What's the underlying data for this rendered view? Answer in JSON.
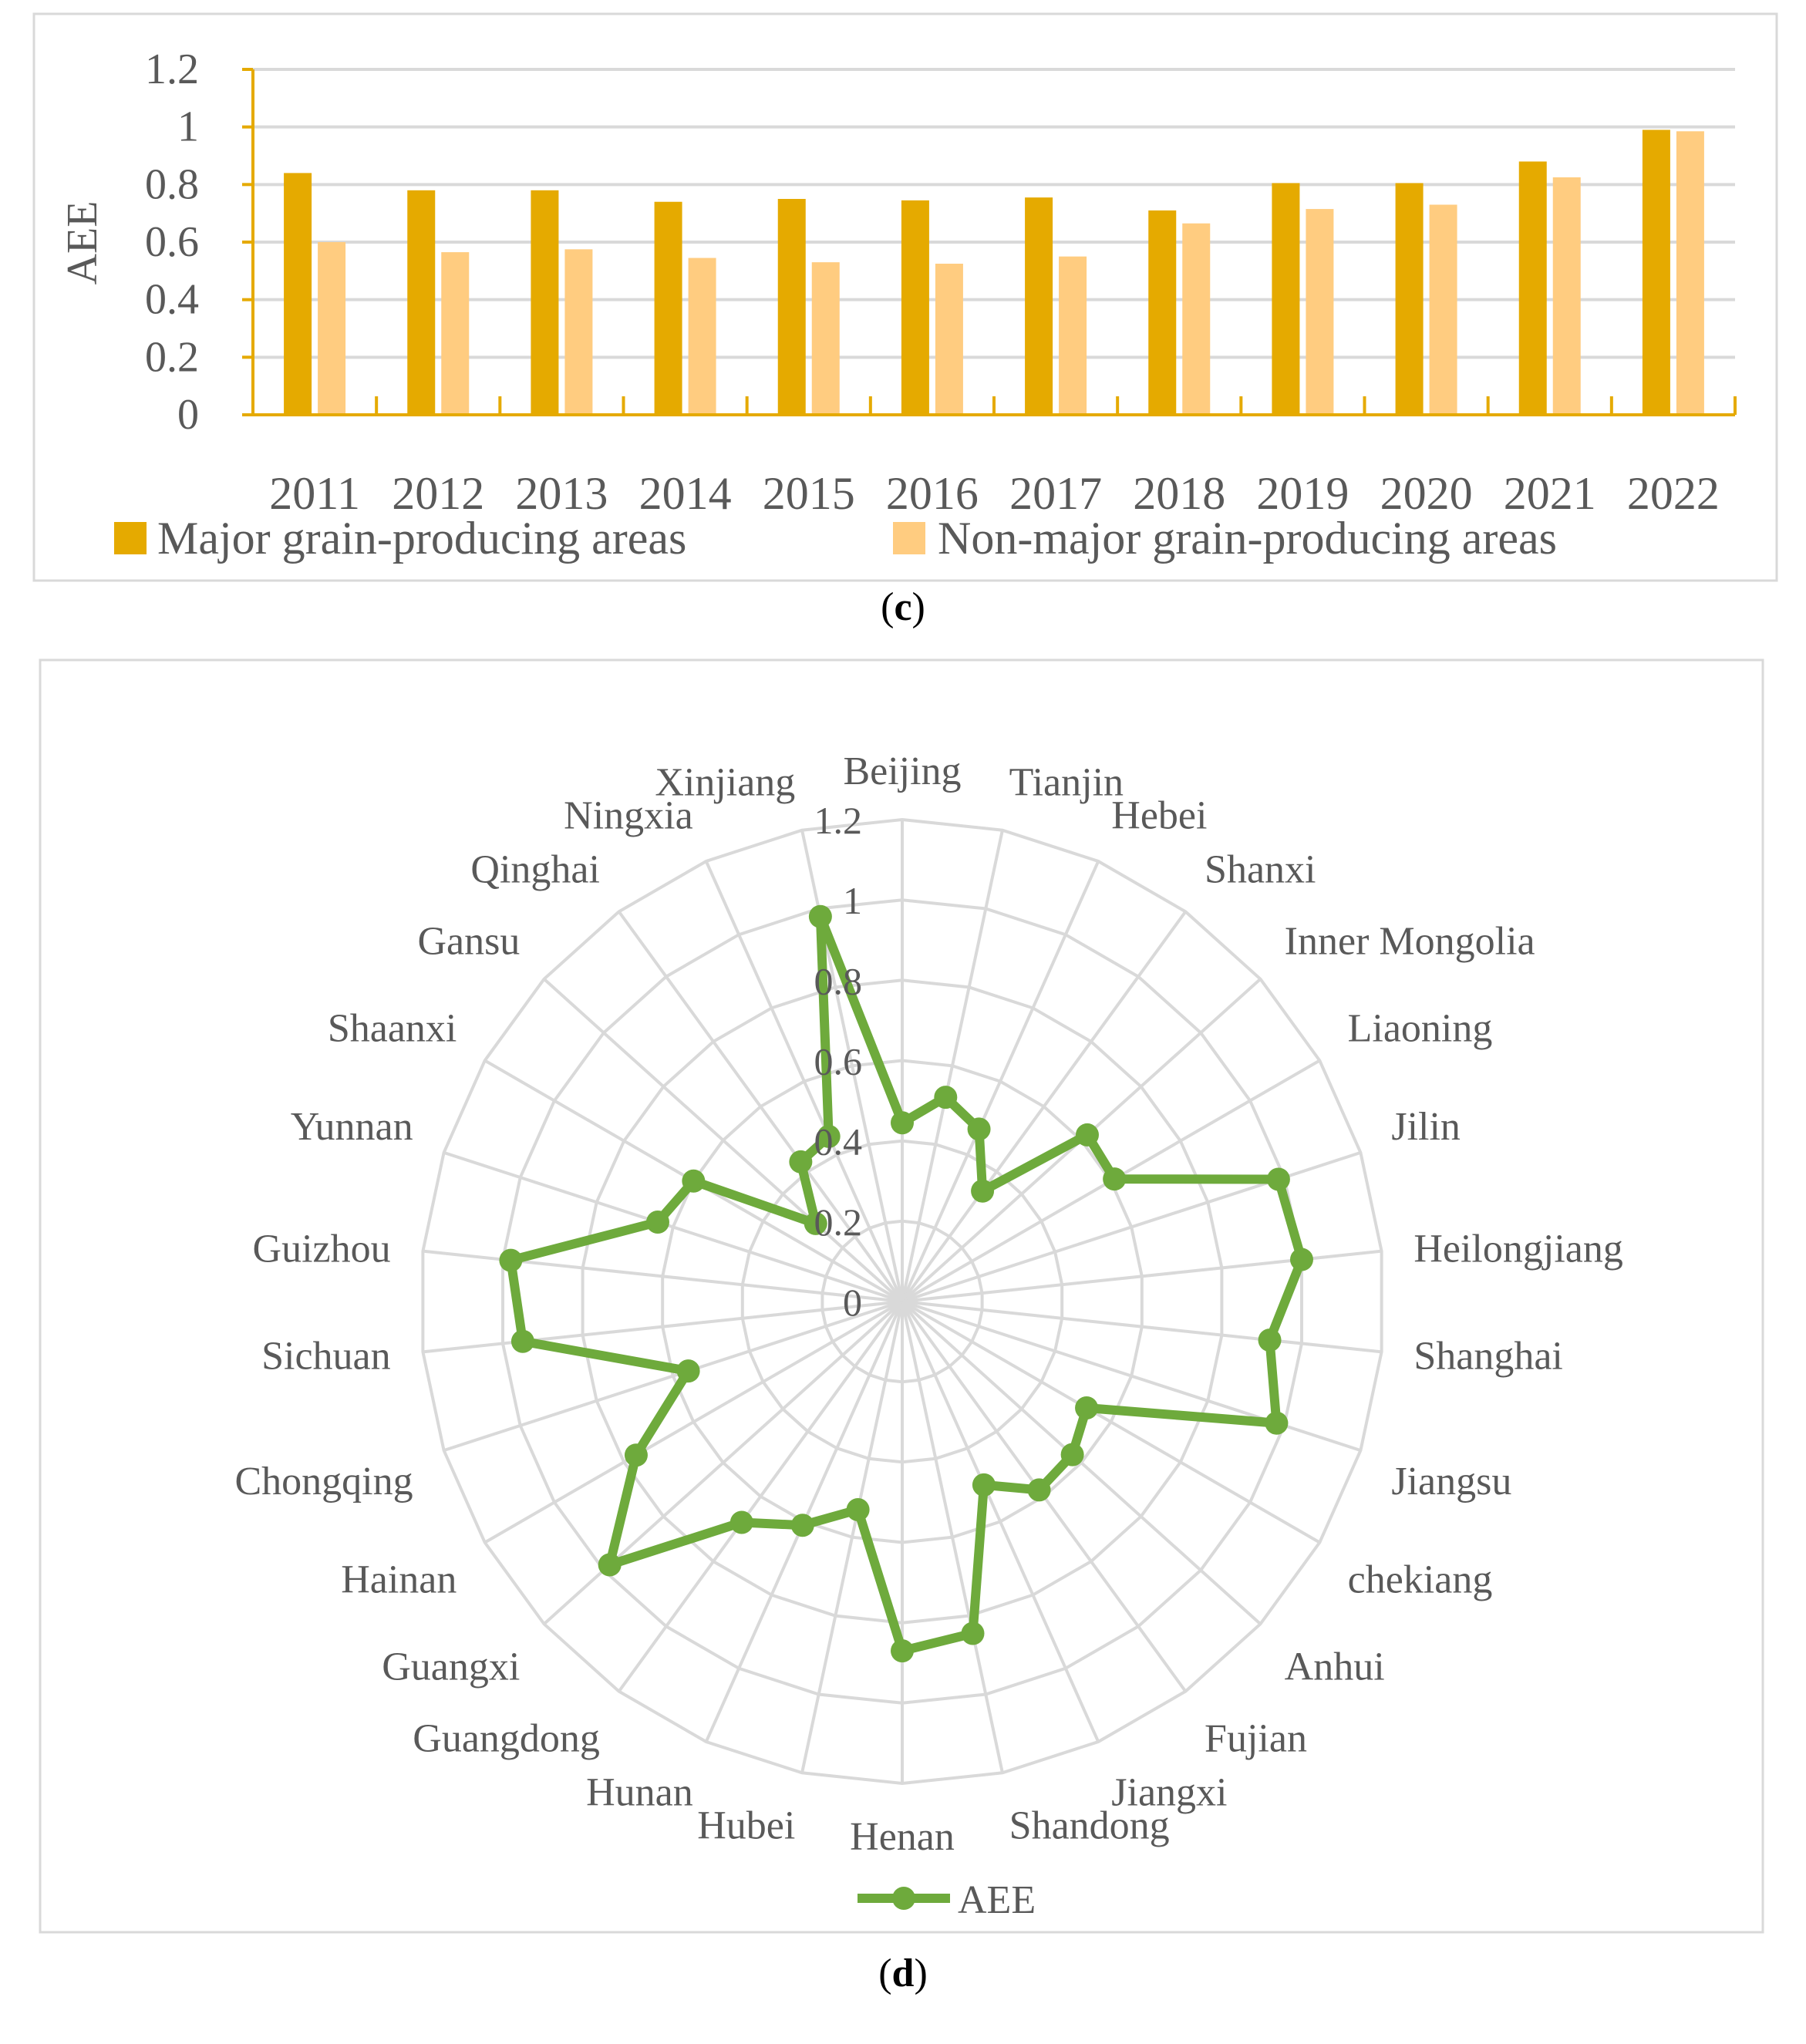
{
  "chart_data": [
    {
      "type": "bar",
      "panel": "c",
      "ylabel": "AEE",
      "xlabel": "",
      "ylim": [
        0,
        1.2
      ],
      "yticks": [
        "0",
        "0.2",
        "0.4",
        "0.6",
        "0.8",
        "1",
        "1.2"
      ],
      "categories": [
        "2011",
        "2012",
        "2013",
        "2014",
        "2015",
        "2016",
        "2017",
        "2018",
        "2019",
        "2020",
        "2021",
        "2022"
      ],
      "series": [
        {
          "name": "Major grain-producing areas",
          "color": "#E5AA00",
          "values": [
            0.84,
            0.78,
            0.78,
            0.74,
            0.75,
            0.745,
            0.755,
            0.71,
            0.805,
            0.805,
            0.88,
            0.99
          ]
        },
        {
          "name": "Non-major grain-producing areas",
          "color": "#FFCC80",
          "values": [
            0.6,
            0.565,
            0.575,
            0.545,
            0.53,
            0.525,
            0.55,
            0.665,
            0.715,
            0.73,
            0.825,
            0.985
          ]
        }
      ],
      "grid": true,
      "legend": "bottom"
    },
    {
      "type": "radar",
      "panel": "d",
      "rlim": [
        0,
        1.2
      ],
      "rticks": [
        "0",
        "0.2",
        "0.4",
        "0.6",
        "0.8",
        "1",
        "1.2"
      ],
      "categories": [
        "Beijing",
        "Tianjin",
        "Hebei",
        "Shanxi",
        "Inner Mongolia",
        "Liaoning",
        "Jilin",
        "Heilongjiang",
        "Shanghai",
        "Jiangsu",
        "chekiang",
        "Anhui",
        "Fujian",
        "Jiangxi",
        "Shandong",
        "Henan",
        "Hubei",
        "Hunan",
        "Guangdong",
        "Guangxi",
        "Hainan",
        "Chongqing",
        "Sichuan",
        "Guizhou",
        "Yunnan",
        "Shaanxi",
        "Gansu",
        "Qinghai",
        "Ningxia",
        "Xinjiang"
      ],
      "series": [
        {
          "name": "AEE",
          "color": "#6EAA3C",
          "values": [
            0.445,
            0.52,
            0.47,
            0.34,
            0.62,
            0.61,
            0.985,
            1.0,
            0.92,
            0.98,
            0.53,
            0.57,
            0.58,
            0.5,
            0.845,
            0.87,
            0.53,
            0.61,
            0.68,
            0.98,
            0.765,
            0.56,
            0.95,
            0.98,
            0.64,
            0.6,
            0.29,
            0.43,
            0.45,
            0.98
          ]
        }
      ],
      "grid": true,
      "legend": "bottom"
    }
  ],
  "panel_labels": {
    "c": "c",
    "d": "d"
  }
}
